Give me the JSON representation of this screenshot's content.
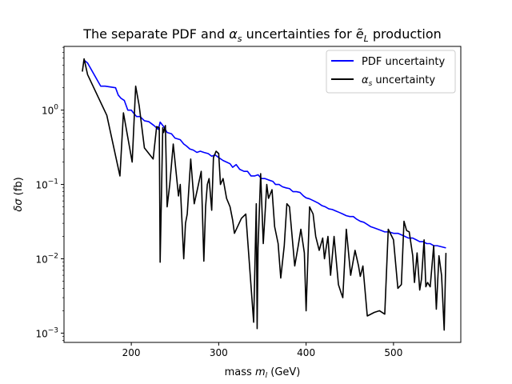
{
  "chart_data": {
    "type": "line",
    "title": {
      "prefix": "The separate PDF and ",
      "alpha": "α",
      "alpha_sub": "s",
      "middle": " uncertainties for ",
      "e": "ẽ",
      "e_sub": "L",
      "suffix": " production"
    },
    "xlabel": {
      "prefix": "mass ",
      "m": "m",
      "m_sub": "l",
      "suffix": " (GeV)"
    },
    "ylabel": {
      "delta": "δσ",
      "suffix": " (fb)"
    },
    "x_scale": "linear",
    "y_scale": "log",
    "xlim": [
      123,
      577
    ],
    "ylim": [
      0.00075,
      7.2
    ],
    "x_ticks": [
      200,
      300,
      400,
      500
    ],
    "y_ticks": [
      {
        "value": 0.001,
        "base": "10",
        "exp": "−3"
      },
      {
        "value": 0.01,
        "base": "10",
        "exp": "−2"
      },
      {
        "value": 0.1,
        "base": "10",
        "exp": "−1"
      },
      {
        "value": 1,
        "base": "10",
        "exp": "0"
      }
    ],
    "legend_position": "upper right",
    "series": [
      {
        "name": "PDF uncertainty",
        "label_plain": "PDF uncertainty",
        "color": "#0000ff",
        "x": [
          145,
          147,
          150,
          165,
          170,
          182,
          185,
          188,
          192,
          196,
          200,
          203,
          206,
          210,
          215,
          220,
          226,
          231,
          233,
          237,
          241,
          246,
          250,
          256,
          260,
          263,
          267,
          271,
          275,
          279,
          283,
          288,
          292,
          296,
          300,
          305,
          309,
          313,
          316,
          320,
          324,
          329,
          333,
          337,
          341,
          345,
          349,
          353,
          357,
          362,
          365,
          369,
          373,
          377,
          381,
          385,
          389,
          393,
          397,
          400,
          404,
          409,
          414,
          418,
          422,
          426,
          430,
          434,
          438,
          442,
          446,
          450,
          454,
          458,
          462,
          466,
          470,
          474,
          478,
          482,
          486,
          490,
          495,
          500,
          505,
          509,
          513,
          517,
          522,
          526,
          530,
          534,
          538,
          542,
          546,
          550,
          555,
          560
        ],
        "y": [
          4.4,
          4.6,
          4.3,
          2.1,
          2.1,
          2.0,
          1.6,
          1.45,
          1.35,
          1.0,
          1.0,
          0.9,
          0.82,
          0.82,
          0.72,
          0.7,
          0.62,
          0.55,
          0.69,
          0.6,
          0.5,
          0.48,
          0.42,
          0.4,
          0.35,
          0.33,
          0.3,
          0.29,
          0.27,
          0.28,
          0.27,
          0.26,
          0.24,
          0.25,
          0.23,
          0.21,
          0.2,
          0.19,
          0.17,
          0.185,
          0.16,
          0.15,
          0.15,
          0.13,
          0.13,
          0.135,
          0.12,
          0.12,
          0.115,
          0.11,
          0.1,
          0.1,
          0.093,
          0.09,
          0.088,
          0.08,
          0.08,
          0.078,
          0.07,
          0.066,
          0.064,
          0.06,
          0.056,
          0.052,
          0.05,
          0.047,
          0.046,
          0.044,
          0.042,
          0.04,
          0.038,
          0.037,
          0.037,
          0.034,
          0.032,
          0.031,
          0.029,
          0.027,
          0.026,
          0.025,
          0.024,
          0.023,
          0.023,
          0.022,
          0.022,
          0.021,
          0.02,
          0.019,
          0.019,
          0.018,
          0.017,
          0.017,
          0.016,
          0.016,
          0.015,
          0.015,
          0.0145,
          0.014
        ]
      },
      {
        "name": "αs uncertainty",
        "label_prefix": "α",
        "label_sub": "s",
        "label_suffix": " uncertainty",
        "color": "#000000",
        "x": [
          144,
          146,
          150,
          172,
          187,
          191,
          201,
          205,
          209,
          215,
          225,
          229,
          232,
          233,
          236,
          237,
          239,
          241,
          244,
          248,
          254,
          256,
          260,
          262,
          264,
          268,
          272,
          276,
          280,
          283,
          285,
          287,
          289,
          292,
          294,
          297,
          300,
          302,
          305,
          309,
          313,
          316,
          318,
          326,
          331,
          340,
          343,
          344,
          345,
          348,
          351,
          355,
          357,
          361,
          364,
          368,
          371,
          375,
          378,
          381,
          387,
          391,
          394,
          398,
          400,
          404,
          408,
          411,
          415,
          419,
          421,
          425,
          428,
          432,
          437,
          440,
          442,
          446,
          451,
          456,
          460,
          462,
          465,
          470,
          478,
          484,
          490,
          494,
          500,
          505,
          509,
          512,
          515,
          518,
          522,
          524,
          527,
          530,
          532,
          535,
          537,
          539,
          542,
          546,
          549,
          552,
          555,
          558,
          560
        ],
        "y": [
          3.3,
          4.9,
          3.0,
          0.85,
          0.13,
          0.92,
          0.2,
          2.1,
          1.15,
          0.31,
          0.22,
          0.6,
          0.58,
          0.009,
          0.58,
          0.5,
          0.62,
          0.05,
          0.1,
          0.35,
          0.07,
          0.1,
          0.01,
          0.03,
          0.04,
          0.22,
          0.055,
          0.09,
          0.15,
          0.0093,
          0.05,
          0.1,
          0.12,
          0.045,
          0.23,
          0.28,
          0.26,
          0.1,
          0.12,
          0.065,
          0.05,
          0.033,
          0.022,
          0.035,
          0.04,
          0.0014,
          0.055,
          0.00115,
          0.014,
          0.14,
          0.016,
          0.1,
          0.065,
          0.085,
          0.027,
          0.016,
          0.0055,
          0.015,
          0.055,
          0.05,
          0.008,
          0.015,
          0.025,
          0.012,
          0.002,
          0.05,
          0.04,
          0.02,
          0.013,
          0.019,
          0.01,
          0.02,
          0.006,
          0.02,
          0.0045,
          0.0035,
          0.003,
          0.025,
          0.006,
          0.013,
          0.008,
          0.0058,
          0.008,
          0.0017,
          0.0019,
          0.002,
          0.0018,
          0.025,
          0.018,
          0.004,
          0.0045,
          0.032,
          0.024,
          0.023,
          0.011,
          0.0048,
          0.012,
          0.0038,
          0.0053,
          0.018,
          0.0042,
          0.0048,
          0.0042,
          0.015,
          0.0021,
          0.011,
          0.006,
          0.0011,
          0.012
        ]
      }
    ]
  }
}
